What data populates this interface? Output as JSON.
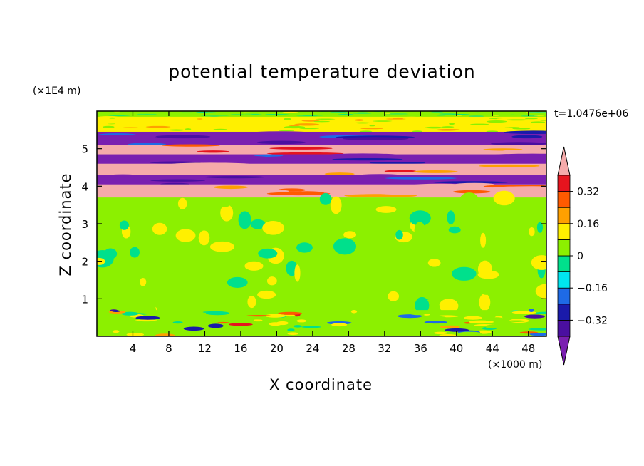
{
  "chart_data": {
    "type": "heatmap",
    "title": "potential temperature deviation",
    "xlabel": "X coordinate",
    "ylabel": "Z coordinate",
    "x_unit": "(×1000 m)",
    "y_unit": "(×1E4 m)",
    "time_label": "t=1.0476e+06",
    "xlim": [
      0,
      50
    ],
    "ylim": [
      0,
      6
    ],
    "x_ticks": [
      4,
      8,
      12,
      16,
      20,
      24,
      28,
      32,
      36,
      40,
      44,
      48
    ],
    "y_ticks": [
      1,
      2,
      3,
      4,
      5
    ],
    "colorbar": {
      "levels": [
        -0.4,
        -0.32,
        -0.24,
        -0.16,
        -0.08,
        0,
        0.08,
        0.16,
        0.24,
        0.32,
        0.4
      ],
      "tick_values": [
        -0.32,
        -0.16,
        0,
        0.16,
        0.32
      ],
      "tick_labels": [
        "−0.32",
        "−0.16",
        "0",
        "0.16",
        "0.32"
      ],
      "colors": [
        "#7a1fb0",
        "#4a0fa0",
        "#1a1aaa",
        "#1e6ae6",
        "#00e6f0",
        "#00e08c",
        "#8cf000",
        "#fff000",
        "#ffa000",
        "#ff5a00",
        "#e6141e",
        "#f5aaaa"
      ],
      "extend": "both"
    },
    "bands": [
      {
        "z": [
          5.85,
          6.0
        ],
        "dominant": 0.02
      },
      {
        "z": [
          5.45,
          5.85
        ],
        "dominant": 0.1
      },
      {
        "z": [
          5.1,
          5.45
        ],
        "dominant": -0.45
      },
      {
        "z": [
          4.85,
          5.1
        ],
        "dominant": 0.45
      },
      {
        "z": [
          4.6,
          4.85
        ],
        "dominant": -0.45
      },
      {
        "z": [
          4.3,
          4.6
        ],
        "dominant": 0.45
      },
      {
        "z": [
          4.05,
          4.3
        ],
        "dominant": -0.45
      },
      {
        "z": [
          3.7,
          4.05
        ],
        "dominant": 0.45
      },
      {
        "z": [
          0.7,
          3.7
        ],
        "dominant": 0.05
      },
      {
        "z": [
          0.0,
          0.7
        ],
        "dominant": 0.05
      }
    ]
  }
}
